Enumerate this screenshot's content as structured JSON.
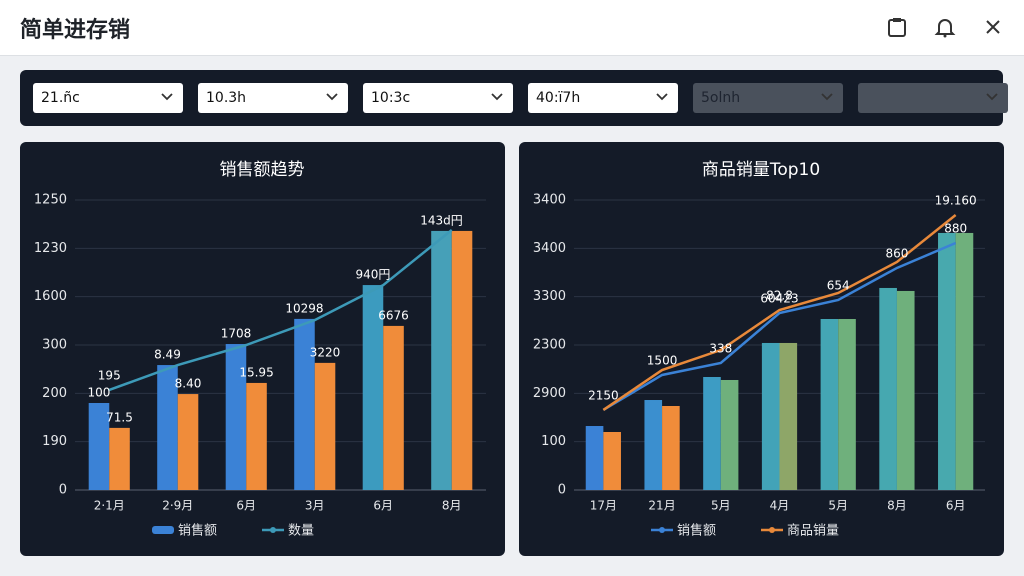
{
  "header": {
    "title": "简单进存销"
  },
  "filters": [
    "21.ñc",
    "10.3h",
    "10:3c",
    "40:ï7h",
    "5olnh"
  ],
  "chart_data": [
    {
      "type": "bar",
      "title": "销售额趋势",
      "categories": [
        "2·1月",
        "2·9月",
        "6月",
        "3月",
        "6月",
        "8月"
      ],
      "ylim": [
        0,
        1200
      ],
      "yticks": [
        0,
        {
          "value": 200,
          "label": "190"
        },
        {
          "value": 400,
          "label": "200"
        },
        {
          "value": 600,
          "label": "300"
        },
        {
          "value": 800,
          "label": "1600"
        },
        {
          "value": 1000,
          "label": "1230"
        },
        {
          "value": 1200,
          "label": "1250"
        }
      ],
      "grid": true,
      "series": [
        {
          "type": "bar",
          "name": "销售额",
          "colors": [
            "#3b82d6",
            "#3b82d6",
            "#3b82d6",
            "#3b82d6",
            "#3c9bbf",
            "#46a0b8"
          ],
          "values": [
            360,
            517,
            604,
            708,
            848,
            1072
          ],
          "annotations": [
            "100",
            "8.49",
            "1708",
            "10298",
            "940円",
            "143d円"
          ]
        },
        {
          "type": "bar",
          "colors": [
            "#f08c3a",
            "#f08c3a",
            "#f08c3a",
            "#f08c3a",
            "#f08c3a",
            "#f08c3a"
          ],
          "values": [
            257,
            397,
            443,
            526,
            679,
            1072
          ],
          "annotations": [
            "71.5",
            "8.40",
            "15.95",
            "3220",
            "6676",
            null
          ]
        },
        {
          "type": "line",
          "name": "数量",
          "color": "#3d9ab8",
          "values": [
            414,
            517,
            600,
            703,
            848,
            1076
          ],
          "annotations": [
            "195",
            null,
            null,
            null,
            null,
            null
          ]
        }
      ]
    },
    {
      "type": "bar",
      "title": "商品销量Top10",
      "categories": [
        "17月",
        "21月",
        "5月",
        "4月",
        "5月",
        "8月",
        "6月"
      ],
      "ylim": [
        0,
        3000
      ],
      "yticks": [
        0,
        {
          "value": 500,
          "label": "100"
        },
        {
          "value": 1000,
          "label": "2900"
        },
        {
          "value": 1500,
          "label": "2300"
        },
        {
          "value": 2000,
          "label": "3300"
        },
        {
          "value": 2500,
          "label": "3400"
        },
        {
          "value": 3000,
          "label": "3400"
        }
      ],
      "grid": true,
      "series": [
        {
          "type": "bar",
          "colors": [
            "#3b82d6",
            "#3b8fcf",
            "#3d9cc4",
            "#42a3b8",
            "#44a6b4",
            "#46a8b0",
            "#48a9ae"
          ],
          "values": [
            662,
            931,
            1169,
            1521,
            1769,
            2090,
            2659
          ],
          "annotations": [
            null,
            null,
            null,
            null,
            null,
            null,
            null
          ]
        },
        {
          "type": "bar",
          "colors": [
            "#f08c3a",
            "#f08c3a",
            "#6fb07c",
            "#8ea668",
            "#6fb07c",
            "#6fb07c",
            "#6fb07c"
          ],
          "values": [
            600,
            869,
            1138,
            1521,
            1769,
            2059,
            2659
          ],
          "annotations": [
            null,
            null,
            null,
            null,
            null,
            null,
            null
          ]
        },
        {
          "type": "line",
          "name": "销售额",
          "color": "#3b82d6",
          "values": [
            828,
            1190,
            1314,
            1831,
            1966,
            2297,
            2555
          ],
          "annotations": [
            "2150",
            "1500",
            "338",
            "60423",
            "654",
            "860",
            "880"
          ]
        },
        {
          "type": "line",
          "name": "商品销量",
          "color": "#e8893a",
          "values": [
            828,
            1241,
            1448,
            1862,
            2038,
            2359,
            2845
          ],
          "annotations": [
            null,
            null,
            null,
            "82.8",
            null,
            null,
            "19.160"
          ]
        }
      ]
    }
  ]
}
